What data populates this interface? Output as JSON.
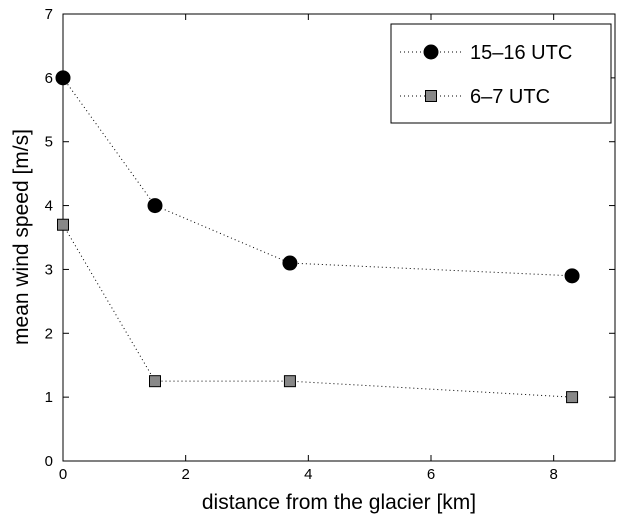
{
  "chart_data": {
    "type": "scatter",
    "title": "",
    "xlabel": "distance from the glacier [km]",
    "ylabel": "mean wind speed [m/s]",
    "xlim": [
      0,
      9
    ],
    "ylim": [
      0,
      7
    ],
    "xticks": [
      "0",
      "2",
      "4",
      "6",
      "8"
    ],
    "yticks": [
      "0",
      "1",
      "2",
      "3",
      "4",
      "5",
      "6",
      "7"
    ],
    "grid": false,
    "legend_position": "top-right",
    "series": [
      {
        "name": "15–16 UTC",
        "marker": "circle",
        "color": "#000000",
        "line_style": "dotted",
        "x": [
          0,
          1.5,
          3.7,
          8.3
        ],
        "y": [
          6.0,
          4.0,
          3.1,
          2.9
        ]
      },
      {
        "name": "6–7 UTC",
        "marker": "square",
        "color": "#888888",
        "line_style": "dotted",
        "x": [
          0,
          1.5,
          3.7,
          8.3
        ],
        "y": [
          3.7,
          1.25,
          1.25,
          1.0
        ]
      }
    ]
  }
}
